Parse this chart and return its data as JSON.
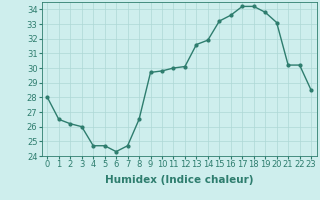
{
  "x": [
    0,
    1,
    2,
    3,
    4,
    5,
    6,
    7,
    8,
    9,
    10,
    11,
    12,
    13,
    14,
    15,
    16,
    17,
    18,
    19,
    20,
    21,
    22,
    23
  ],
  "y": [
    28,
    26.5,
    26.2,
    26.0,
    24.7,
    24.7,
    24.3,
    24.7,
    26.5,
    29.7,
    29.8,
    30.0,
    30.1,
    31.6,
    31.9,
    33.2,
    33.6,
    34.2,
    34.2,
    33.8,
    33.1,
    30.2,
    30.2,
    28.5
  ],
  "line_color": "#2e7d6e",
  "marker": "o",
  "marker_size": 2,
  "bg_color": "#ceeeed",
  "grid_color": "#aed8d6",
  "xlabel": "Humidex (Indice chaleur)",
  "xlim": [
    -0.5,
    23.5
  ],
  "ylim": [
    24,
    34.5
  ],
  "yticks": [
    24,
    25,
    26,
    27,
    28,
    29,
    30,
    31,
    32,
    33,
    34
  ],
  "xticks": [
    0,
    1,
    2,
    3,
    4,
    5,
    6,
    7,
    8,
    9,
    10,
    11,
    12,
    13,
    14,
    15,
    16,
    17,
    18,
    19,
    20,
    21,
    22,
    23
  ],
  "tick_label_fontsize": 6,
  "xlabel_fontsize": 7.5,
  "line_width": 1.0
}
